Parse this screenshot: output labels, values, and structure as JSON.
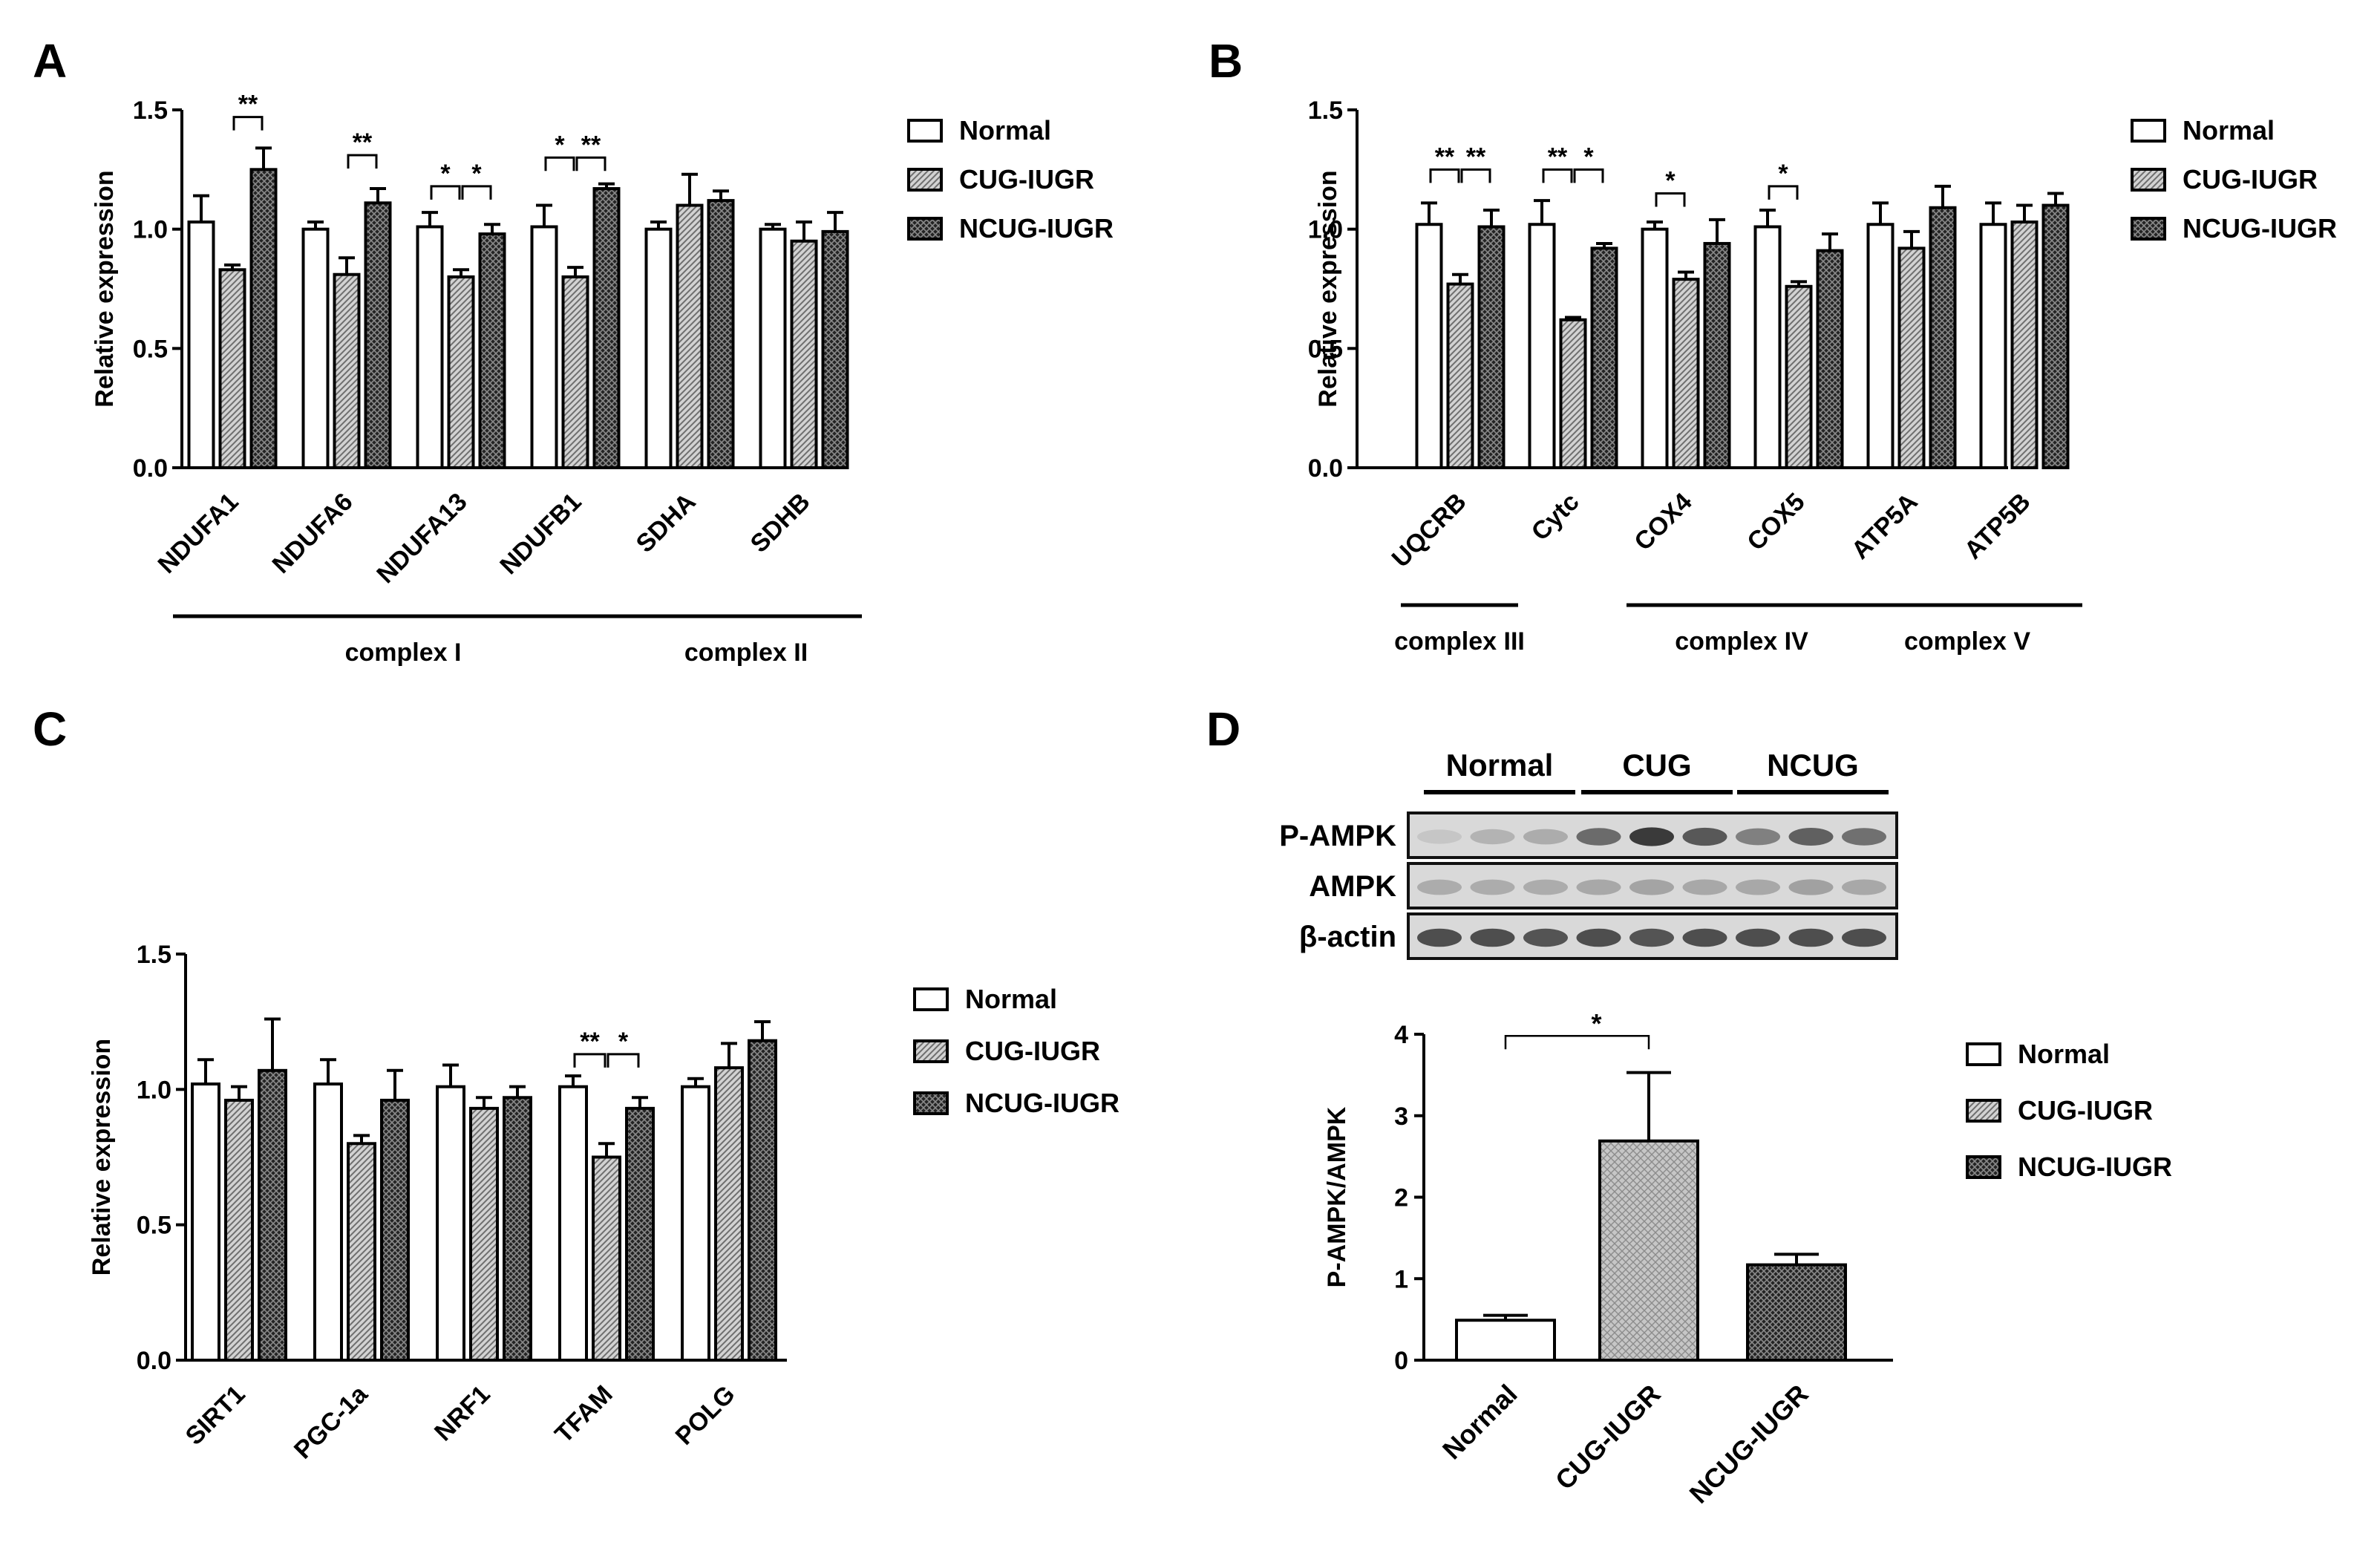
{
  "colors": {
    "normal": "#ffffff",
    "cug": "#bcbcbc",
    "ncug": "#333333",
    "ink": "#000000"
  },
  "legend": [
    "Normal",
    "CUG-IUGR",
    "NCUG-IUGR"
  ],
  "panels": {
    "A": {
      "letter": "A",
      "ylabel": "Relative expression",
      "ylim": [
        0,
        1.5
      ],
      "yticks": [
        "0.0",
        "0.5",
        "1.0",
        "1.5"
      ],
      "categories": [
        "NDUFA1",
        "NDUFA6",
        "NDUFA13",
        "NDUFB1",
        "SDHA",
        "SDHB"
      ],
      "groups": [
        {
          "label": "complex I",
          "from": 0,
          "to": 3
        },
        {
          "label": "complex II",
          "from": 4,
          "to": 5
        }
      ]
    },
    "B": {
      "letter": "B",
      "ylabel": "Relative expression",
      "ylim": [
        0,
        1.5
      ],
      "yticks": [
        "0.0",
        "0.5",
        "1.0",
        "1.5"
      ],
      "categories": [
        "UQCRB",
        "Cytc",
        "COX4",
        "COX5",
        "ATP5A",
        "ATP5B"
      ],
      "groups": [
        {
          "label": "complex III",
          "from": 0,
          "to": 0
        },
        {
          "label": "complex IV",
          "from": 2,
          "to": 3
        },
        {
          "label": "complex V",
          "from": 4,
          "to": 5
        }
      ]
    },
    "C": {
      "letter": "C",
      "ylabel": "Relative expression",
      "ylim": [
        0,
        1.5
      ],
      "yticks": [
        "0.0",
        "0.5",
        "1.0",
        "1.5"
      ],
      "categories": [
        "SIRT1",
        "PGC-1a",
        "NRF1",
        "TFAM",
        "POLG"
      ]
    },
    "D": {
      "letter": "D",
      "blot": {
        "groups": [
          "Normal",
          "CUG",
          "NCUG"
        ],
        "rows": [
          "P-AMPK",
          "AMPK",
          "β-actin"
        ]
      },
      "ylabel": "P-AMPK/AMPK",
      "ylim": [
        0,
        4
      ],
      "yticks": [
        "0",
        "1",
        "2",
        "3",
        "4"
      ],
      "categories": [
        "Normal",
        "CUG-IUGR",
        "NCUG-IUGR"
      ]
    }
  },
  "chart_data": [
    {
      "panel": "A",
      "type": "bar",
      "title": "",
      "xlabel": "",
      "ylabel": "Relative expression",
      "ylim": [
        0,
        1.5
      ],
      "categories": [
        "NDUFA1",
        "NDUFA6",
        "NDUFA13",
        "NDUFB1",
        "SDHA",
        "SDHB"
      ],
      "series": [
        {
          "name": "Normal",
          "values": [
            1.03,
            1.0,
            1.01,
            1.01,
            1.0,
            1.0
          ],
          "errors": [
            0.11,
            0.03,
            0.06,
            0.09,
            0.03,
            0.02
          ]
        },
        {
          "name": "CUG-IUGR",
          "values": [
            0.83,
            0.81,
            0.8,
            0.8,
            1.1,
            0.95
          ],
          "errors": [
            0.02,
            0.07,
            0.03,
            0.04,
            0.13,
            0.08
          ]
        },
        {
          "name": "NCUG-IUGR",
          "values": [
            1.25,
            1.11,
            0.98,
            1.17,
            1.12,
            0.99
          ],
          "errors": [
            0.09,
            0.06,
            0.04,
            0.02,
            0.04,
            0.08
          ]
        }
      ],
      "significance": [
        {
          "cat": 0,
          "from": 1,
          "to": 2,
          "label": "**",
          "y": 1.47
        },
        {
          "cat": 1,
          "from": 1,
          "to": 2,
          "label": "**",
          "y": 1.31
        },
        {
          "cat": 2,
          "from": 0,
          "to": 1,
          "label": "*",
          "y": 1.18
        },
        {
          "cat": 2,
          "from": 1,
          "to": 2,
          "label": "*",
          "y": 1.18
        },
        {
          "cat": 3,
          "from": 0,
          "to": 1,
          "label": "*",
          "y": 1.3
        },
        {
          "cat": 3,
          "from": 1,
          "to": 2,
          "label": "**",
          "y": 1.3
        }
      ]
    },
    {
      "panel": "B",
      "type": "bar",
      "title": "",
      "xlabel": "",
      "ylabel": "Relative expression",
      "ylim": [
        0,
        1.5
      ],
      "categories": [
        "UQCRB",
        "Cytc",
        "COX4",
        "COX5",
        "ATP5A",
        "ATP5B"
      ],
      "series": [
        {
          "name": "Normal",
          "values": [
            1.02,
            1.02,
            1.0,
            1.01,
            1.02,
            1.02
          ],
          "errors": [
            0.09,
            0.1,
            0.03,
            0.07,
            0.09,
            0.09
          ]
        },
        {
          "name": "CUG-IUGR",
          "values": [
            0.77,
            0.62,
            0.79,
            0.76,
            0.92,
            1.03
          ],
          "errors": [
            0.04,
            0.01,
            0.03,
            0.02,
            0.07,
            0.07
          ]
        },
        {
          "name": "NCUG-IUGR",
          "values": [
            1.01,
            0.92,
            0.94,
            0.91,
            1.09,
            1.1
          ],
          "errors": [
            0.07,
            0.02,
            0.1,
            0.07,
            0.09,
            0.05
          ]
        }
      ],
      "significance": [
        {
          "cat": 0,
          "from": 0,
          "to": 1,
          "label": "**",
          "y": 1.25
        },
        {
          "cat": 0,
          "from": 1,
          "to": 2,
          "label": "**",
          "y": 1.25
        },
        {
          "cat": 1,
          "from": 0,
          "to": 1,
          "label": "**",
          "y": 1.25
        },
        {
          "cat": 1,
          "from": 1,
          "to": 2,
          "label": "*",
          "y": 1.25
        },
        {
          "cat": 2,
          "from": 0,
          "to": 1,
          "label": "*",
          "y": 1.15
        },
        {
          "cat": 3,
          "from": 0,
          "to": 1,
          "label": "*",
          "y": 1.18
        }
      ]
    },
    {
      "panel": "C",
      "type": "bar",
      "title": "",
      "xlabel": "",
      "ylabel": "Relative expression",
      "ylim": [
        0,
        1.5
      ],
      "categories": [
        "SIRT1",
        "PGC-1a",
        "NRF1",
        "TFAM",
        "POLG"
      ],
      "series": [
        {
          "name": "Normal",
          "values": [
            1.02,
            1.02,
            1.01,
            1.01,
            1.01
          ],
          "errors": [
            0.09,
            0.09,
            0.08,
            0.04,
            0.03
          ]
        },
        {
          "name": "CUG-IUGR",
          "values": [
            0.96,
            0.8,
            0.93,
            0.75,
            1.08
          ],
          "errors": [
            0.05,
            0.03,
            0.04,
            0.05,
            0.09
          ]
        },
        {
          "name": "NCUG-IUGR",
          "values": [
            1.07,
            0.96,
            0.97,
            0.93,
            1.18
          ],
          "errors": [
            0.19,
            0.11,
            0.04,
            0.04,
            0.07
          ]
        }
      ],
      "significance": [
        {
          "cat": 3,
          "from": 0,
          "to": 1,
          "label": "**",
          "y": 1.13
        },
        {
          "cat": 3,
          "from": 1,
          "to": 2,
          "label": "*",
          "y": 1.13
        }
      ]
    },
    {
      "panel": "D",
      "type": "bar",
      "title": "",
      "xlabel": "",
      "ylabel": "P-AMPK/AMPK",
      "ylim": [
        0,
        4
      ],
      "categories": [
        "Normal",
        "CUG-IUGR",
        "NCUG-IUGR"
      ],
      "values": [
        0.49,
        2.69,
        1.17
      ],
      "errors": [
        0.06,
        0.84,
        0.13
      ],
      "significance": [
        {
          "from": 0,
          "to": 1,
          "label": "*",
          "y": 3.98
        }
      ]
    }
  ]
}
